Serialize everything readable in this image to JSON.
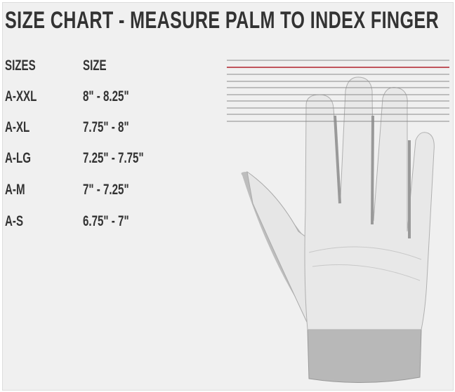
{
  "title": "SIZE CHART - MEASURE PALM TO INDEX FINGER",
  "table": {
    "headers": [
      "SIZES",
      "SIZE"
    ],
    "rows": [
      {
        "size": "A-XXL",
        "range": "8\" - 8.25\""
      },
      {
        "size": "A-XL",
        "range": "7.75\" - 8\""
      },
      {
        "size": "A-LG",
        "range": "7.25\" - 7.75\""
      },
      {
        "size": "A-M",
        "range": "7\" - 7.25\""
      },
      {
        "size": "A-S",
        "range": "6.75\" - 7\""
      }
    ]
  },
  "colors": {
    "text": "#333333",
    "highlight_line": "#b0202a",
    "guide_line": "#8a8a8a",
    "background": "#f0f0f0"
  },
  "illustration": "glove-palm-icon"
}
